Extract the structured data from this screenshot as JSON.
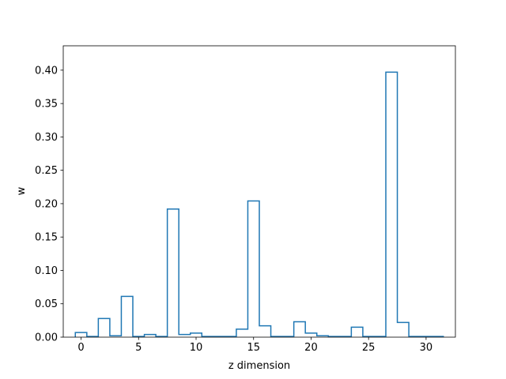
{
  "chart_data": {
    "type": "bar",
    "style": "step-outline histogram",
    "xlabel": "z dimension",
    "ylabel": "w",
    "xlim": [
      -1.55,
      32.55
    ],
    "ylim": [
      0,
      0.4365
    ],
    "xticks": [
      0,
      5,
      10,
      15,
      20,
      25,
      30
    ],
    "xtick_labels": [
      "0",
      "5",
      "10",
      "15",
      "20",
      "25",
      "30"
    ],
    "yticks": [
      0.0,
      0.05,
      0.1,
      0.15,
      0.2,
      0.25,
      0.3,
      0.35,
      0.4
    ],
    "ytick_labels": [
      "0.00",
      "0.05",
      "0.10",
      "0.15",
      "0.20",
      "0.25",
      "0.30",
      "0.35",
      "0.40"
    ],
    "grid": false,
    "categories": [
      0,
      1,
      2,
      3,
      4,
      5,
      6,
      7,
      8,
      9,
      10,
      11,
      12,
      13,
      14,
      15,
      16,
      17,
      18,
      19,
      20,
      21,
      22,
      23,
      24,
      25,
      26,
      27,
      28,
      29,
      30,
      31
    ],
    "values": [
      0.007,
      0.001,
      0.028,
      0.002,
      0.061,
      0.001,
      0.004,
      0.001,
      0.192,
      0.004,
      0.006,
      0.001,
      0.001,
      0.001,
      0.012,
      0.204,
      0.017,
      0.001,
      0.001,
      0.023,
      0.006,
      0.002,
      0.001,
      0.001,
      0.015,
      0.001,
      0.001,
      0.397,
      0.022,
      0.001,
      0.001,
      0.001
    ],
    "color": "#1f77b4"
  }
}
